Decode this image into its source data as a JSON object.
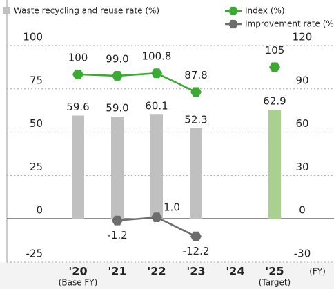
{
  "chart_data": {
    "type": "bar_line",
    "categories": [
      "'20",
      "'21",
      "'22",
      "'23",
      "'24",
      "'25"
    ],
    "category_notes": [
      "(Base FY)",
      null,
      null,
      null,
      null,
      "(Target)"
    ],
    "x_label": "(FY)",
    "bars": {
      "name": "Waste recycling and reuse rate (%)",
      "colors": [
        "#c0c0c0",
        "#c0c0c0",
        "#c0c0c0",
        "#c0c0c0",
        "#c0c0c0",
        "#a9d18e"
      ],
      "values": [
        59.6,
        59.0,
        60.1,
        52.3,
        null,
        62.9
      ],
      "value_labels": [
        "59.6",
        "59.0",
        "60.1",
        "52.3",
        null,
        "62.9"
      ]
    },
    "series": [
      {
        "name": "Index (%)",
        "color": "#3aaa35",
        "axis": "y2",
        "values": [
          100,
          99.0,
          100.8,
          87.8,
          null,
          105
        ],
        "value_labels": [
          "100",
          "99.0",
          "100.8",
          "87.8",
          null,
          "105"
        ]
      },
      {
        "name": "Improvement rate (%)",
        "color": "#6d6d6d",
        "axis": "y2",
        "values": [
          null,
          -1.2,
          1.0,
          -12.2,
          null,
          null
        ],
        "value_labels": [
          null,
          "-1.2",
          "1.0",
          "-12.2",
          null,
          null
        ]
      }
    ],
    "ylim": [
      -25,
      100
    ],
    "yticks": [
      -25,
      0,
      25,
      50,
      75,
      100
    ],
    "y2lim": [
      -30,
      120
    ],
    "y2ticks": [
      -30,
      0,
      30,
      60,
      90,
      120
    ],
    "grid": true
  }
}
